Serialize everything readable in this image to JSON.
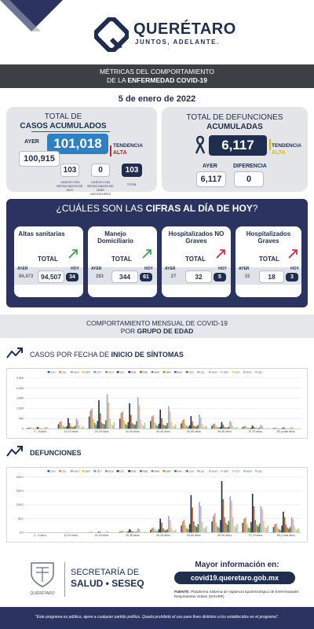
{
  "header": {
    "brand": "QUERÉTARO",
    "tagline": "JUNTOS, ADELANTE."
  },
  "metrics_bar": {
    "line1": "MÉTRICAS DEL COMPORTAMIENTO",
    "line2_prefix": "DE LA ",
    "line2_bold": "ENFERMEDAD COVID-19"
  },
  "date": "5 de enero de 2022",
  "cases": {
    "title_line1": "TOTAL DE",
    "title_line2": "CASOS ACUMULADOS",
    "ayer_label": "AYER",
    "today_value": "101,018",
    "yesterday_value": "100,915",
    "tendencia_label": "TENDENCIA",
    "tendencia_value": "ALTA",
    "sub1_value": "103",
    "sub1_label": "CASOS CON RESULTADOS DE HOY",
    "sub2_value": "0",
    "sub2_label": "CASOS CON RESULTADOS DE DÍAS ANTERIORES",
    "sub3_value": "103",
    "sub3_label": "TOTAL"
  },
  "deaths": {
    "title_line1": "TOTAL DE DEFUNCIONES",
    "title_line2": "ACUMULADAS",
    "today_value": "6,117",
    "tendencia_label": "TENDENCIA",
    "tendencia_value": "ALTA",
    "ayer_label": "AYER",
    "diferencia_label": "DIFERENCIA",
    "yesterday_value": "6,117",
    "diff_value": "0"
  },
  "today": {
    "title_prefix": "¿CUÁLES SON LAS ",
    "title_bold": "CIFRAS AL DÍA DE HOY",
    "title_suffix": "?",
    "cards": [
      {
        "title": "Altas sanitarias",
        "total_label": "TOTAL",
        "ayer_label": "AYER",
        "hoy_label": "HOY",
        "ayer": "94,473",
        "total": "94,507",
        "hoy": "34",
        "arrow_color": "#2e9e3e"
      },
      {
        "title": "Manejo Domiciliario",
        "total_label": "TOTAL",
        "ayer_label": "AYER",
        "hoy_label": "HOY",
        "ayer": "283",
        "total": "344",
        "hoy": "61",
        "arrow_color": "#2e9e3e"
      },
      {
        "title": "Hospitalizados NO Graves",
        "total_label": "TOTAL",
        "ayer_label": "AYER",
        "hoy_label": "HOY",
        "ayer": "27",
        "total": "32",
        "hoy": "5",
        "arrow_color": "#c8202f"
      },
      {
        "title": "Hospitalizados Graves",
        "total_label": "TOTAL",
        "ayer_label": "AYER",
        "hoy_label": "HOY",
        "ayer": "15",
        "total": "18",
        "hoy": "3",
        "arrow_color": "#c8202f"
      }
    ]
  },
  "behavior_bar": {
    "line1": "COMPORTAMIENTO MENSUAL DE COVID-19",
    "line2_prefix": "POR ",
    "line2_bold": "GRUPO DE EDAD"
  },
  "section_cases": {
    "prefix": "CASOS POR FECHA DE ",
    "bold": "INICIO DE SÍNTOMAS"
  },
  "section_deaths": {
    "bold": "DEFUNCIONES"
  },
  "chart_data": [
    {
      "type": "bar",
      "title": "CASOS POR FECHA DE INICIO DE SÍNTOMAS",
      "categories": [
        "0 - 9 años",
        "10-19 años",
        "20-29 años",
        "30-39 años",
        "40-49 años",
        "50-59 años",
        "60-69 años",
        "70-79 años",
        "80 y más años"
      ],
      "ylim": [
        0,
        2500
      ],
      "yticks": [
        "0",
        "500",
        "1,000",
        "1,500",
        "2,000",
        "2,500"
      ],
      "legend": "top",
      "series": [
        {
          "name": "JUN",
          "color": "#2f5597",
          "values": [
            40,
            220,
            600,
            500,
            380,
            260,
            150,
            80,
            30
          ]
        },
        {
          "name": "JUL",
          "color": "#ed7d31",
          "values": [
            60,
            330,
            900,
            780,
            600,
            420,
            230,
            120,
            50
          ]
        },
        {
          "name": "AGO",
          "color": "#a5a5a5",
          "values": [
            70,
            380,
            1000,
            850,
            660,
            470,
            260,
            130,
            55
          ]
        },
        {
          "name": "SEP",
          "color": "#ffc000",
          "values": [
            35,
            180,
            480,
            420,
            320,
            230,
            130,
            70,
            30
          ]
        },
        {
          "name": "OCT",
          "color": "#5b9bd5",
          "values": [
            20,
            100,
            280,
            250,
            190,
            140,
            80,
            45,
            20
          ]
        },
        {
          "name": "NOV",
          "color": "#70ad47",
          "values": [
            15,
            70,
            200,
            180,
            140,
            100,
            60,
            35,
            15
          ]
        },
        {
          "name": "DIC",
          "color": "#264478",
          "values": [
            25,
            120,
            380,
            330,
            250,
            170,
            90,
            45,
            18
          ]
        },
        {
          "name": "ENE",
          "color": "#1f2d4e",
          "values": [
            90,
            520,
            1400,
            1250,
            950,
            620,
            330,
            160,
            60
          ]
        },
        {
          "name": "FEB",
          "color": "#c55a11",
          "values": [
            50,
            280,
            760,
            680,
            520,
            360,
            200,
            100,
            40
          ]
        },
        {
          "name": "MAR",
          "color": "#7f7f7f",
          "values": [
            20,
            110,
            300,
            270,
            210,
            150,
            85,
            45,
            18
          ]
        },
        {
          "name": "ABR",
          "color": "#bf9000",
          "values": [
            15,
            90,
            240,
            220,
            170,
            120,
            70,
            35,
            15
          ]
        },
        {
          "name": "MAY",
          "color": "#2e75b6",
          "values": [
            15,
            80,
            220,
            200,
            150,
            110,
            60,
            30,
            12
          ]
        },
        {
          "name": "JUN",
          "color": "#548235",
          "values": [
            25,
            150,
            420,
            380,
            280,
            190,
            100,
            50,
            20
          ]
        },
        {
          "name": "JUL",
          "color": "#8faadc",
          "values": [
            80,
            500,
            1700,
            1550,
            1100,
            700,
            380,
            180,
            70
          ]
        },
        {
          "name": "AGO",
          "color": "#f4b183",
          "values": [
            70,
            420,
            1300,
            1150,
            850,
            560,
            300,
            150,
            60
          ]
        },
        {
          "name": "SEP",
          "color": "#c9c9c9",
          "values": [
            30,
            180,
            500,
            450,
            340,
            240,
            130,
            65,
            25
          ]
        },
        {
          "name": "OCT",
          "color": "#ffd966",
          "values": [
            15,
            80,
            230,
            210,
            160,
            110,
            60,
            30,
            12
          ]
        },
        {
          "name": "NOV",
          "color": "#9dc3e6",
          "values": [
            12,
            60,
            170,
            150,
            115,
            80,
            45,
            25,
            10
          ]
        },
        {
          "name": "DIC",
          "color": "#a9d18e",
          "values": [
            18,
            110,
            330,
            300,
            220,
            150,
            80,
            40,
            15
          ]
        }
      ]
    },
    {
      "type": "bar",
      "title": "DEFUNCIONES",
      "categories": [
        "0 - 9 años",
        "10-19 años",
        "20-29 años",
        "30-39 años",
        "40-49 años",
        "50-59 años",
        "60-69 años",
        "70-79 años",
        "80 y más años"
      ],
      "ylim": [
        0,
        200
      ],
      "yticks": [
        "0.0",
        "50.0",
        "100.0",
        "150.0",
        "200.0"
      ],
      "legend": "top",
      "series": [
        {
          "name": "JUN",
          "color": "#2f5597",
          "values": [
            0,
            0,
            1,
            3,
            10,
            25,
            40,
            35,
            20
          ]
        },
        {
          "name": "JUL",
          "color": "#ed7d31",
          "values": [
            0,
            0,
            2,
            5,
            15,
            40,
            60,
            50,
            30
          ]
        },
        {
          "name": "AGO",
          "color": "#a5a5a5",
          "values": [
            0,
            0,
            2,
            6,
            18,
            45,
            70,
            55,
            32
          ]
        },
        {
          "name": "SEP",
          "color": "#ffc000",
          "values": [
            0,
            0,
            1,
            3,
            10,
            25,
            35,
            30,
            18
          ]
        },
        {
          "name": "OCT",
          "color": "#5b9bd5",
          "values": [
            0,
            0,
            1,
            2,
            6,
            15,
            22,
            18,
            12
          ]
        },
        {
          "name": "NOV",
          "color": "#70ad47",
          "values": [
            0,
            0,
            0,
            2,
            5,
            12,
            18,
            15,
            10
          ]
        },
        {
          "name": "DIC",
          "color": "#264478",
          "values": [
            0,
            0,
            1,
            4,
            12,
            30,
            45,
            38,
            25
          ]
        },
        {
          "name": "ENE",
          "color": "#1f2d4e",
          "values": [
            0,
            1,
            3,
            12,
            50,
            135,
            185,
            140,
            75
          ]
        },
        {
          "name": "FEB",
          "color": "#c55a11",
          "values": [
            0,
            0,
            2,
            8,
            35,
            90,
            120,
            95,
            55
          ]
        },
        {
          "name": "MAR",
          "color": "#7f7f7f",
          "values": [
            0,
            0,
            1,
            4,
            15,
            40,
            55,
            45,
            28
          ]
        },
        {
          "name": "ABR",
          "color": "#bf9000",
          "values": [
            0,
            0,
            1,
            3,
            10,
            25,
            35,
            28,
            18
          ]
        },
        {
          "name": "MAY",
          "color": "#2e75b6",
          "values": [
            0,
            0,
            1,
            2,
            8,
            20,
            28,
            22,
            14
          ]
        },
        {
          "name": "JUN",
          "color": "#548235",
          "values": [
            0,
            0,
            1,
            3,
            12,
            30,
            42,
            32,
            20
          ]
        },
        {
          "name": "JUL",
          "color": "#8faadc",
          "values": [
            0,
            1,
            4,
            15,
            60,
            110,
            130,
            95,
            55
          ]
        },
        {
          "name": "AGO",
          "color": "#f4b183",
          "values": [
            0,
            0,
            3,
            12,
            45,
            95,
            115,
            85,
            50
          ]
        },
        {
          "name": "SEP",
          "color": "#c9c9c9",
          "values": [
            0,
            0,
            1,
            5,
            18,
            40,
            55,
            42,
            25
          ]
        },
        {
          "name": "OCT",
          "color": "#ffd966",
          "values": [
            0,
            0,
            1,
            2,
            8,
            18,
            25,
            20,
            13
          ]
        },
        {
          "name": "NOV",
          "color": "#9dc3e6",
          "values": [
            0,
            0,
            0,
            2,
            6,
            14,
            20,
            16,
            10
          ]
        },
        {
          "name": "DIC",
          "color": "#a9d18e",
          "values": [
            0,
            0,
            1,
            3,
            10,
            22,
            30,
            25,
            15
          ]
        }
      ]
    }
  ],
  "footer": {
    "secretaria_line1": "SECRETARÍA DE",
    "secretaria_line2": "SALUD • SESEQ",
    "seal_caption": "QUERÉTARO",
    "more_info": "Mayor información en:",
    "url": "covid19.queretaro.gob.mx",
    "fuente_label": "FUENTE:",
    "fuente_text": "Plataforma Sistema de Vigilancia Epidemiológica de Enfermedades Respiratorias Virales (SISVER)",
    "disclaimer": "\"Este programa es público, ajeno a cualquier partido político. Queda prohibido el uso para fines distintos a los establecidos en el programa\"."
  }
}
